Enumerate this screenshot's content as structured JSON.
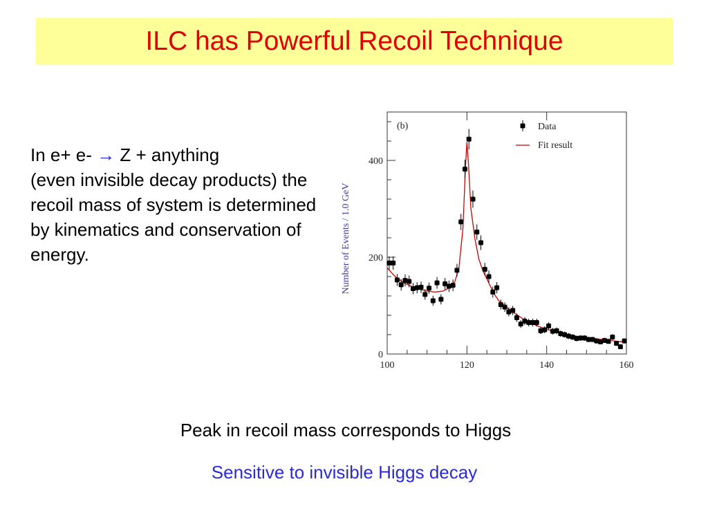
{
  "slide": {
    "title": "ILC has Powerful Recoil Technique",
    "intro_before_arrow": "In e+ e- ",
    "arrow": "→",
    "intro_after_arrow": " Z + anything",
    "intro_rest": "(even invisible decay products) the recoil mass of system is determined by kinematics and conservation of energy.",
    "caption_1": "Peak in recoil mass corresponds to Higgs",
    "caption_2": "Sensitive to invisible Higgs decay",
    "colors": {
      "title": "#e00000",
      "title_bg": "#ffff99",
      "arrow": "#1a1aff",
      "caption_2": "#2a2ad8",
      "fit": "#cc0000"
    }
  },
  "chart_data": {
    "type": "scatter",
    "panel_label": "(b)",
    "xlabel": "",
    "ylabel": "Number of Events / 1.0 GeV",
    "xlim": [
      100,
      160
    ],
    "ylim": [
      0,
      500
    ],
    "xticks": [
      100,
      120,
      140,
      160
    ],
    "yticks": [
      0,
      200,
      400
    ],
    "legend": {
      "placement": "top-right",
      "entries": [
        "Data",
        "Fit result"
      ]
    },
    "series": [
      {
        "name": "Data",
        "marker": "point-with-error",
        "x": [
          100.5,
          101.5,
          102.5,
          103.5,
          104.5,
          105.5,
          106.5,
          107.5,
          108.5,
          109.5,
          110.5,
          111.5,
          112.5,
          113.5,
          114.5,
          115.5,
          116.5,
          117.5,
          118.5,
          119.5,
          120.5,
          121.5,
          122.5,
          123.5,
          124.5,
          125.5,
          126.5,
          127.5,
          128.5,
          129.5,
          130.5,
          131.5,
          132.5,
          133.5,
          134.5,
          135.5,
          136.5,
          137.5,
          138.5,
          139.5,
          140.5,
          141.5,
          142.5,
          143.5,
          144.5,
          145.5,
          146.5,
          147.5,
          148.5,
          149.5,
          150.5,
          151.5,
          152.5,
          153.5,
          154.5,
          155.5,
          156.5,
          157.5,
          158.5,
          159.5
        ],
        "y": [
          188,
          188,
          153,
          143,
          152,
          150,
          135,
          137,
          138,
          123,
          136,
          110,
          147,
          113,
          145,
          140,
          142,
          173,
          273,
          382,
          444,
          320,
          252,
          230,
          175,
          160,
          128,
          137,
          102,
          97,
          87,
          90,
          75,
          62,
          68,
          65,
          65,
          65,
          48,
          50,
          58,
          47,
          48,
          42,
          40,
          37,
          35,
          32,
          33,
          33,
          30,
          30,
          27,
          25,
          28,
          26,
          35,
          22,
          15,
          27
        ]
      },
      {
        "name": "Fit result",
        "marker": "line",
        "x": [
          100,
          102,
          104,
          106,
          108,
          110,
          112,
          114,
          115,
          116,
          117,
          118,
          119,
          119.6,
          120,
          120.4,
          121,
          122,
          123,
          124,
          125,
          126,
          127,
          128,
          130,
          132,
          134,
          136,
          138,
          140,
          142,
          144,
          146,
          148,
          150,
          152,
          154,
          156,
          158,
          160
        ],
        "y": [
          178,
          160,
          148,
          140,
          134,
          130,
          128,
          130,
          134,
          140,
          150,
          178,
          260,
          380,
          438,
          392,
          300,
          238,
          196,
          172,
          155,
          138,
          122,
          110,
          96,
          84,
          73,
          64,
          57,
          51,
          46,
          42,
          39,
          36,
          34,
          32,
          30,
          28,
          26,
          24
        ]
      }
    ]
  }
}
